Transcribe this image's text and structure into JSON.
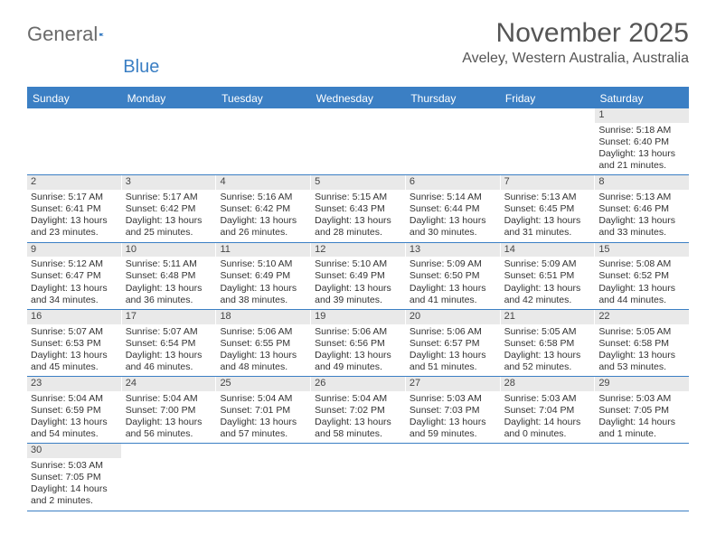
{
  "logo": {
    "text1": "General",
    "text2": "Blue"
  },
  "title": "November 2025",
  "location": "Aveley, Western Australia, Australia",
  "colors": {
    "accent": "#3b7fc4",
    "header_text": "#555555",
    "logo_gray": "#6a6a6a",
    "day_number_bg": "#e9e9e9",
    "body_text": "#333333"
  },
  "day_names": [
    "Sunday",
    "Monday",
    "Tuesday",
    "Wednesday",
    "Thursday",
    "Friday",
    "Saturday"
  ],
  "weeks": [
    [
      null,
      null,
      null,
      null,
      null,
      null,
      {
        "n": "1",
        "sr": "Sunrise: 5:18 AM",
        "ss": "Sunset: 6:40 PM",
        "dl": "Daylight: 13 hours and 21 minutes."
      }
    ],
    [
      {
        "n": "2",
        "sr": "Sunrise: 5:17 AM",
        "ss": "Sunset: 6:41 PM",
        "dl": "Daylight: 13 hours and 23 minutes."
      },
      {
        "n": "3",
        "sr": "Sunrise: 5:17 AM",
        "ss": "Sunset: 6:42 PM",
        "dl": "Daylight: 13 hours and 25 minutes."
      },
      {
        "n": "4",
        "sr": "Sunrise: 5:16 AM",
        "ss": "Sunset: 6:42 PM",
        "dl": "Daylight: 13 hours and 26 minutes."
      },
      {
        "n": "5",
        "sr": "Sunrise: 5:15 AM",
        "ss": "Sunset: 6:43 PM",
        "dl": "Daylight: 13 hours and 28 minutes."
      },
      {
        "n": "6",
        "sr": "Sunrise: 5:14 AM",
        "ss": "Sunset: 6:44 PM",
        "dl": "Daylight: 13 hours and 30 minutes."
      },
      {
        "n": "7",
        "sr": "Sunrise: 5:13 AM",
        "ss": "Sunset: 6:45 PM",
        "dl": "Daylight: 13 hours and 31 minutes."
      },
      {
        "n": "8",
        "sr": "Sunrise: 5:13 AM",
        "ss": "Sunset: 6:46 PM",
        "dl": "Daylight: 13 hours and 33 minutes."
      }
    ],
    [
      {
        "n": "9",
        "sr": "Sunrise: 5:12 AM",
        "ss": "Sunset: 6:47 PM",
        "dl": "Daylight: 13 hours and 34 minutes."
      },
      {
        "n": "10",
        "sr": "Sunrise: 5:11 AM",
        "ss": "Sunset: 6:48 PM",
        "dl": "Daylight: 13 hours and 36 minutes."
      },
      {
        "n": "11",
        "sr": "Sunrise: 5:10 AM",
        "ss": "Sunset: 6:49 PM",
        "dl": "Daylight: 13 hours and 38 minutes."
      },
      {
        "n": "12",
        "sr": "Sunrise: 5:10 AM",
        "ss": "Sunset: 6:49 PM",
        "dl": "Daylight: 13 hours and 39 minutes."
      },
      {
        "n": "13",
        "sr": "Sunrise: 5:09 AM",
        "ss": "Sunset: 6:50 PM",
        "dl": "Daylight: 13 hours and 41 minutes."
      },
      {
        "n": "14",
        "sr": "Sunrise: 5:09 AM",
        "ss": "Sunset: 6:51 PM",
        "dl": "Daylight: 13 hours and 42 minutes."
      },
      {
        "n": "15",
        "sr": "Sunrise: 5:08 AM",
        "ss": "Sunset: 6:52 PM",
        "dl": "Daylight: 13 hours and 44 minutes."
      }
    ],
    [
      {
        "n": "16",
        "sr": "Sunrise: 5:07 AM",
        "ss": "Sunset: 6:53 PM",
        "dl": "Daylight: 13 hours and 45 minutes."
      },
      {
        "n": "17",
        "sr": "Sunrise: 5:07 AM",
        "ss": "Sunset: 6:54 PM",
        "dl": "Daylight: 13 hours and 46 minutes."
      },
      {
        "n": "18",
        "sr": "Sunrise: 5:06 AM",
        "ss": "Sunset: 6:55 PM",
        "dl": "Daylight: 13 hours and 48 minutes."
      },
      {
        "n": "19",
        "sr": "Sunrise: 5:06 AM",
        "ss": "Sunset: 6:56 PM",
        "dl": "Daylight: 13 hours and 49 minutes."
      },
      {
        "n": "20",
        "sr": "Sunrise: 5:06 AM",
        "ss": "Sunset: 6:57 PM",
        "dl": "Daylight: 13 hours and 51 minutes."
      },
      {
        "n": "21",
        "sr": "Sunrise: 5:05 AM",
        "ss": "Sunset: 6:58 PM",
        "dl": "Daylight: 13 hours and 52 minutes."
      },
      {
        "n": "22",
        "sr": "Sunrise: 5:05 AM",
        "ss": "Sunset: 6:58 PM",
        "dl": "Daylight: 13 hours and 53 minutes."
      }
    ],
    [
      {
        "n": "23",
        "sr": "Sunrise: 5:04 AM",
        "ss": "Sunset: 6:59 PM",
        "dl": "Daylight: 13 hours and 54 minutes."
      },
      {
        "n": "24",
        "sr": "Sunrise: 5:04 AM",
        "ss": "Sunset: 7:00 PM",
        "dl": "Daylight: 13 hours and 56 minutes."
      },
      {
        "n": "25",
        "sr": "Sunrise: 5:04 AM",
        "ss": "Sunset: 7:01 PM",
        "dl": "Daylight: 13 hours and 57 minutes."
      },
      {
        "n": "26",
        "sr": "Sunrise: 5:04 AM",
        "ss": "Sunset: 7:02 PM",
        "dl": "Daylight: 13 hours and 58 minutes."
      },
      {
        "n": "27",
        "sr": "Sunrise: 5:03 AM",
        "ss": "Sunset: 7:03 PM",
        "dl": "Daylight: 13 hours and 59 minutes."
      },
      {
        "n": "28",
        "sr": "Sunrise: 5:03 AM",
        "ss": "Sunset: 7:04 PM",
        "dl": "Daylight: 14 hours and 0 minutes."
      },
      {
        "n": "29",
        "sr": "Sunrise: 5:03 AM",
        "ss": "Sunset: 7:05 PM",
        "dl": "Daylight: 14 hours and 1 minute."
      }
    ],
    [
      {
        "n": "30",
        "sr": "Sunrise: 5:03 AM",
        "ss": "Sunset: 7:05 PM",
        "dl": "Daylight: 14 hours and 2 minutes."
      },
      null,
      null,
      null,
      null,
      null,
      null
    ]
  ]
}
